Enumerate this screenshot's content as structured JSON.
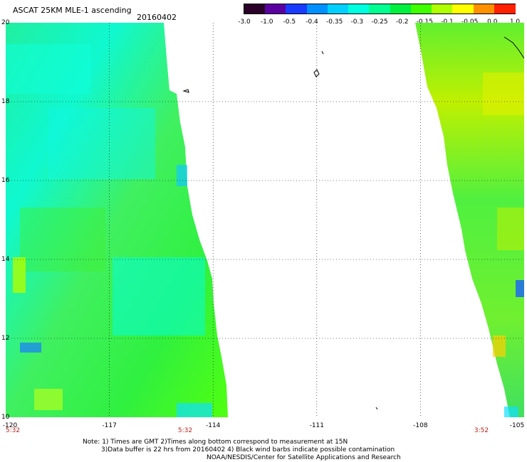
{
  "header": {
    "title": "ASCAT 25KM MLE-1 ascending",
    "date": "20160402"
  },
  "colorbar": {
    "labels": [
      "-3.0",
      "-1.0",
      "-0.5",
      "-0.4",
      "-0.35",
      "-0.3",
      "-0.25",
      "-0.2",
      "-0.15",
      "-0.1",
      "-0.05",
      "0.0",
      "1.0"
    ],
    "colors": [
      "#2a0028",
      "#5a00a0",
      "#1a3cff",
      "#0090ff",
      "#00d0ff",
      "#00ffe0",
      "#00ff90",
      "#00f040",
      "#40ff00",
      "#b0ff00",
      "#ffff00",
      "#ff9000",
      "#ff2000"
    ]
  },
  "axes": {
    "lat_labels": [
      "20",
      "18",
      "16",
      "14",
      "12",
      "10"
    ],
    "lon_labels": [
      "-120",
      "-117",
      "-114",
      "-111",
      "-108",
      "-105"
    ]
  },
  "times": {
    "left": "5:32",
    "middle": "5:32",
    "right": "3:52"
  },
  "notes": {
    "line1": "Note: 1) Times are GMT 2)Times along bottom correspond to measurement at 15N",
    "line2": "3)Data buffer is 22 hrs from 20160402 4) Black wind barbs indicate possible contamination",
    "line3": "NOAA/NESDIS/Center for Satellite Applications and Research"
  }
}
